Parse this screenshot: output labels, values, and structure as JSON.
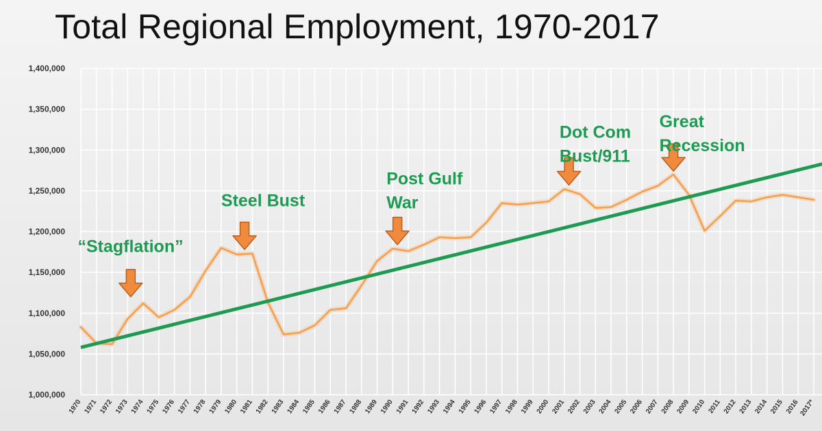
{
  "chart_data": {
    "type": "line",
    "title": "Total Regional Employment, 1970-2017",
    "x_tick_labels": [
      "1970",
      "1971",
      "1972",
      "1973",
      "1974",
      "1975",
      "1976",
      "1977",
      "1978",
      "1979",
      "1980",
      "1981",
      "1982",
      "1983",
      "1984",
      "1985",
      "1986",
      "1987",
      "1988",
      "1989",
      "1990",
      "1991",
      "1992",
      "1993",
      "1994",
      "1995",
      "1996",
      "1997",
      "1998",
      "1999",
      "2000",
      "2001",
      "2002",
      "2003",
      "2004",
      "2005",
      "2006",
      "2007",
      "2008",
      "2009",
      "2010",
      "2011",
      "2012",
      "2013",
      "2014",
      "2015",
      "2016",
      "2017*"
    ],
    "y_tick_labels": [
      "1,000,000",
      "1,050,000",
      "1,100,000",
      "1,150,000",
      "1,200,000",
      "1,250,000",
      "1,300,000",
      "1,350,000",
      "1,400,000"
    ],
    "ylim": [
      1000000,
      1400000
    ],
    "grid": true,
    "series": [
      {
        "color": "#f5a04e",
        "x": [
          1970,
          1971,
          1972,
          1973,
          1974,
          1975,
          1976,
          1977,
          1978,
          1979,
          1980,
          1981,
          1982,
          1983,
          1984,
          1985,
          1986,
          1987,
          1988,
          1989,
          1990,
          1991,
          1992,
          1993,
          1994,
          1995,
          1996,
          1997,
          1998,
          1999,
          2000,
          2001,
          2002,
          2003,
          2004,
          2005,
          2006,
          2007,
          2008,
          2009,
          2010,
          2011,
          2012,
          2013,
          2014,
          2015,
          2016,
          2017
        ],
        "values": [
          1083000,
          1063000,
          1062000,
          1093000,
          1112000,
          1095000,
          1104000,
          1120000,
          1152000,
          1180000,
          1172000,
          1173000,
          1113000,
          1074000,
          1076000,
          1085000,
          1104000,
          1106000,
          1134000,
          1164000,
          1179000,
          1176000,
          1184000,
          1193000,
          1192000,
          1193000,
          1211000,
          1235000,
          1233000,
          1235000,
          1237000,
          1252000,
          1246000,
          1229000,
          1230000,
          1239000,
          1249000,
          1256000,
          1270000,
          1245000,
          1201000,
          1219000,
          1238000,
          1237000,
          1242000,
          1245000,
          1242000,
          1239000
        ]
      },
      {
        "color": "#1e9a52",
        "x": [
          1970,
          2018
        ],
        "values": [
          1058000,
          1285000
        ]
      }
    ],
    "annotations": [
      {
        "label_lines": [
          "“Stagflation”"
        ],
        "year": 1973.2,
        "arrow_tip_value": 1120000,
        "label_value": 1175000,
        "label_year": 1969.8
      },
      {
        "label_lines": [
          "Steel Bust"
        ],
        "year": 1980.5,
        "arrow_tip_value": 1178000,
        "label_value": 1231000,
        "label_year": 1979.0
      },
      {
        "label_lines": [
          "Post Gulf",
          "War"
        ],
        "year": 1990.3,
        "arrow_tip_value": 1184000,
        "label_value": 1258000,
        "label_year": 1989.6
      },
      {
        "label_lines": [
          "Dot Com",
          "Bust/911"
        ],
        "year": 2001.3,
        "arrow_tip_value": 1257000,
        "label_value": 1315000,
        "label_year": 2000.7
      },
      {
        "label_lines": [
          "Great",
          "Recession"
        ],
        "year": 2008.0,
        "arrow_tip_value": 1274000,
        "label_value": 1328000,
        "label_year": 2007.1
      }
    ],
    "colors": {
      "line": "#f5a04e",
      "trend": "#1e9a52",
      "arrow": "#f08a3c",
      "annotation_text": "#1e9a52",
      "grid": "#ffffff"
    }
  }
}
